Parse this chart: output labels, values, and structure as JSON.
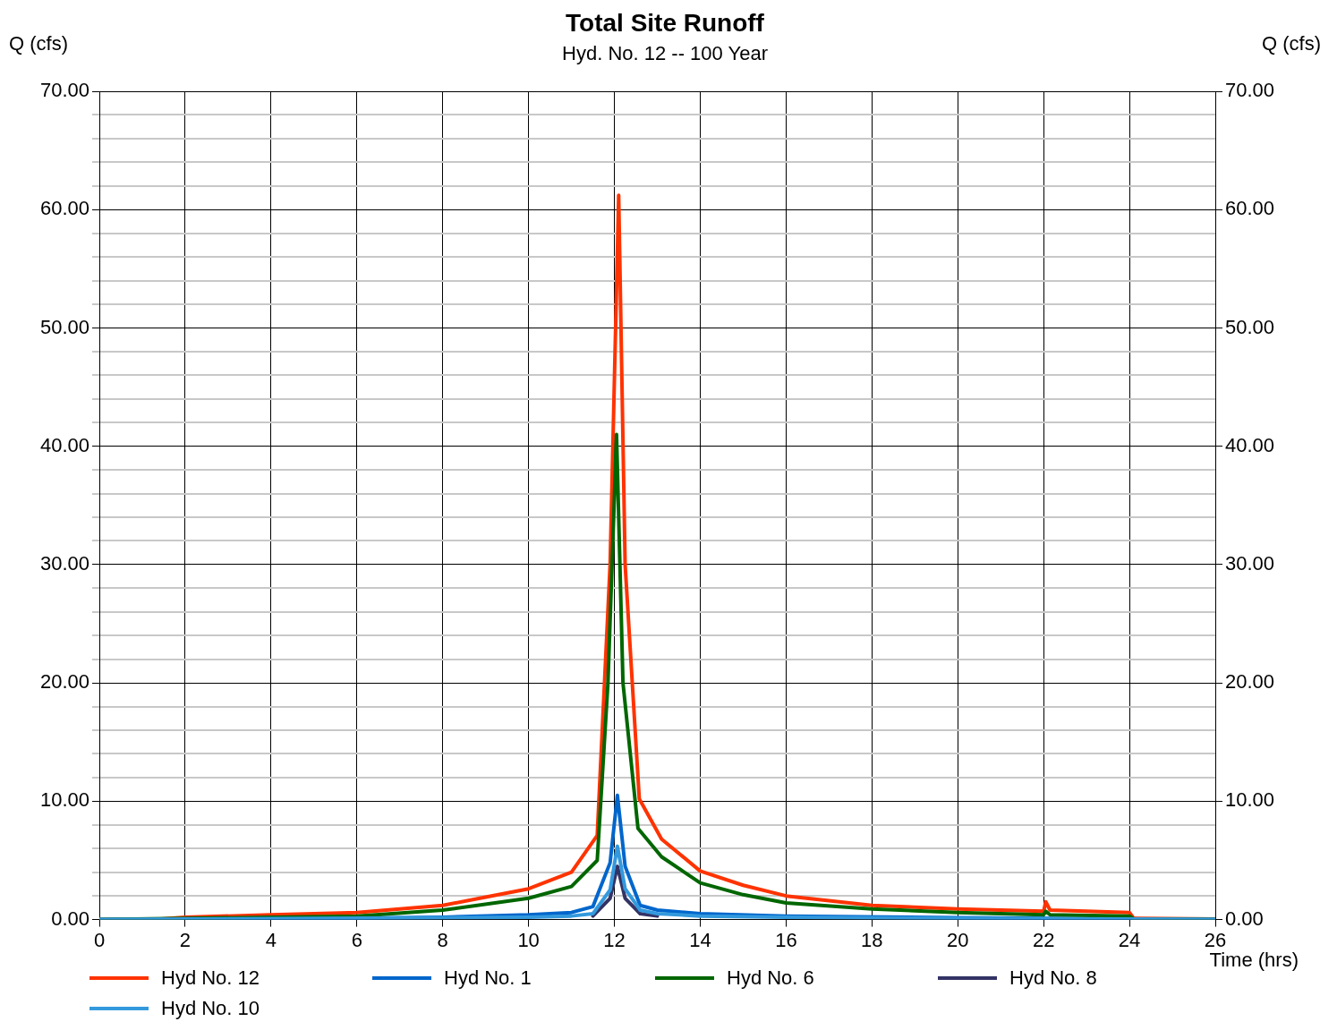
{
  "chart_data": {
    "type": "line",
    "title": "Total Site Runoff",
    "subtitle": "Hyd. No. 12 -- 100 Year",
    "xlabel": "Time (hrs)",
    "ylabel": "Q (cfs)",
    "y2label": "Q (cfs)",
    "xlim": [
      0,
      26
    ],
    "xticks": [
      0,
      2,
      4,
      6,
      8,
      10,
      12,
      14,
      16,
      18,
      20,
      22,
      24,
      26
    ],
    "ylim": [
      0,
      70
    ],
    "yticks": [
      {
        "value": 0,
        "label": "0.00"
      },
      {
        "value": 2,
        "label": null
      },
      {
        "value": 4,
        "label": null
      },
      {
        "value": 6,
        "label": null
      },
      {
        "value": 8,
        "label": null
      },
      {
        "value": 10,
        "label": "10.00"
      },
      {
        "value": 12,
        "label": null
      },
      {
        "value": 14,
        "label": null
      },
      {
        "value": 16,
        "label": null
      },
      {
        "value": 18,
        "label": null
      },
      {
        "value": 20,
        "label": "20.00"
      },
      {
        "value": 22,
        "label": null
      },
      {
        "value": 24,
        "label": null
      },
      {
        "value": 26,
        "label": null
      },
      {
        "value": 28,
        "label": null
      },
      {
        "value": 30,
        "label": "30.00"
      },
      {
        "value": 32,
        "label": null
      },
      {
        "value": 34,
        "label": null
      },
      {
        "value": 36,
        "label": null
      },
      {
        "value": 38,
        "label": null
      },
      {
        "value": 40,
        "label": "40.00"
      },
      {
        "value": 42,
        "label": null
      },
      {
        "value": 44,
        "label": null
      },
      {
        "value": 46,
        "label": null
      },
      {
        "value": 48,
        "label": null
      },
      {
        "value": 50,
        "label": "50.00"
      },
      {
        "value": 52,
        "label": null
      },
      {
        "value": 54,
        "label": null
      },
      {
        "value": 56,
        "label": null
      },
      {
        "value": 58,
        "label": null
      },
      {
        "value": 60,
        "label": "60.00"
      },
      {
        "value": 62,
        "label": null
      },
      {
        "value": 64,
        "label": null
      },
      {
        "value": 66,
        "label": null
      },
      {
        "value": 68,
        "label": null
      },
      {
        "value": 70,
        "label": "70.00"
      }
    ],
    "y2lim": [
      0,
      70
    ],
    "y2ticks": [
      {
        "value": 0,
        "label": "0.00"
      },
      {
        "value": 10,
        "label": "10.00"
      },
      {
        "value": 20,
        "label": "20.00"
      },
      {
        "value": 30,
        "label": "30.00"
      },
      {
        "value": 40,
        "label": "40.00"
      },
      {
        "value": 50,
        "label": "50.00"
      },
      {
        "value": 60,
        "label": "60.00"
      },
      {
        "value": 70,
        "label": "70.00"
      }
    ],
    "grid": true,
    "legend": "bottom",
    "marker": "none",
    "line_style": "solid",
    "series": [
      {
        "name": "Hyd No. 12",
        "color": "#ff3300",
        "x": [
          0,
          1.3,
          2,
          4,
          6,
          7,
          8,
          9,
          10,
          11,
          11.6,
          11.9,
          12.1,
          12.25,
          12.58,
          13.1,
          14,
          15,
          16,
          18,
          20,
          22,
          22.05,
          22.15,
          24,
          24.1,
          26
        ],
        "values": [
          0,
          0,
          0.2,
          0.4,
          0.6,
          0.9,
          1.2,
          1.9,
          2.6,
          4.0,
          7.1,
          30,
          61.2,
          30,
          10.2,
          6.8,
          4.1,
          2.9,
          2.0,
          1.2,
          0.9,
          0.7,
          1.5,
          0.8,
          0.6,
          0.1,
          0.05
        ]
      },
      {
        "name": "Hyd No. 1",
        "color": "#0066cc",
        "x": [
          0,
          4,
          8,
          10,
          11,
          11.5,
          11.9,
          12.07,
          12.25,
          12.6,
          13,
          14,
          16,
          20,
          24,
          26
        ],
        "values": [
          0,
          0.05,
          0.2,
          0.4,
          0.6,
          1.1,
          4.8,
          10.5,
          4.5,
          1.2,
          0.8,
          0.5,
          0.3,
          0.15,
          0.05,
          0
        ]
      },
      {
        "name": "Hyd No. 6",
        "color": "#006600",
        "x": [
          0,
          2,
          4,
          6,
          8,
          10,
          11,
          11.6,
          11.85,
          12.05,
          12.2,
          12.55,
          13.1,
          14,
          15,
          16,
          18,
          20,
          22,
          22.05,
          22.15,
          24,
          24.1,
          26
        ],
        "values": [
          0,
          0.1,
          0.2,
          0.3,
          0.8,
          1.8,
          2.8,
          5.0,
          20,
          41,
          20,
          7.7,
          5.3,
          3.1,
          2.1,
          1.4,
          0.9,
          0.6,
          0.4,
          0.7,
          0.4,
          0.3,
          0.05,
          0
        ]
      },
      {
        "name": "Hyd No. 8",
        "color": "#333366",
        "x": [
          11.5,
          11.9,
          12.07,
          12.25,
          12.6,
          13
        ],
        "values": [
          0.3,
          1.8,
          4.5,
          1.8,
          0.5,
          0.3
        ]
      },
      {
        "name": "Hyd No. 10",
        "color": "#3399dd",
        "x": [
          0,
          10,
          11,
          11.5,
          11.9,
          12.07,
          12.25,
          12.6,
          13,
          14,
          16,
          20,
          24,
          26
        ],
        "values": [
          0,
          0.2,
          0.3,
          0.5,
          2.5,
          6.2,
          2.6,
          0.8,
          0.5,
          0.3,
          0.2,
          0.1,
          0.05,
          0
        ]
      }
    ]
  }
}
